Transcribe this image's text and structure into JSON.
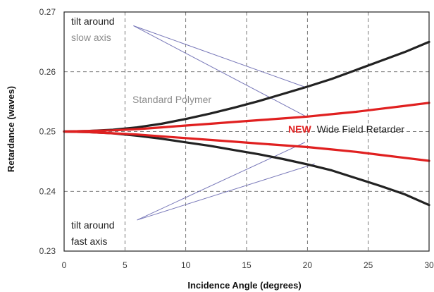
{
  "chart_data": {
    "type": "line",
    "xlabel": "Incidence Angle (degrees)",
    "ylabel": "Retardance (waves)",
    "xlim": [
      0,
      30
    ],
    "ylim": [
      0.23,
      0.27
    ],
    "x_ticks": [
      "0",
      "5",
      "10",
      "15",
      "20",
      "25",
      "30"
    ],
    "y_ticks": [
      "0.23",
      "0.24",
      "0.25",
      "0.26",
      "0.27"
    ],
    "grid": "dashed",
    "series": [
      {
        "group": "Standard Polymer",
        "color": "#222222",
        "x": [
          0,
          2,
          4,
          6,
          8,
          10,
          12,
          14,
          16,
          18,
          20,
          22,
          24,
          26,
          28,
          30
        ],
        "y": [
          0.25,
          0.2501,
          0.2503,
          0.2507,
          0.2513,
          0.2521,
          0.253,
          0.254,
          0.2551,
          0.2563,
          0.2575,
          0.2588,
          0.2603,
          0.2618,
          0.2633,
          0.265
        ]
      },
      {
        "group": "Standard Polymer",
        "color": "#222222",
        "x": [
          0,
          2,
          4,
          6,
          8,
          10,
          12,
          14,
          16,
          18,
          20,
          22,
          24,
          26,
          28,
          30
        ],
        "y": [
          0.25,
          0.2499,
          0.2497,
          0.2493,
          0.2488,
          0.2482,
          0.2476,
          0.2469,
          0.2462,
          0.2454,
          0.2445,
          0.2435,
          0.2422,
          0.2409,
          0.2395,
          0.2377
        ]
      },
      {
        "group": "NEW Wide Field Retarder",
        "color": "#e02020",
        "x": [
          0,
          2,
          4,
          6,
          8,
          10,
          12,
          14,
          16,
          18,
          20,
          22,
          24,
          26,
          28,
          30
        ],
        "y": [
          0.25,
          0.2501,
          0.2502,
          0.2504,
          0.2507,
          0.251,
          0.2513,
          0.2516,
          0.2519,
          0.2522,
          0.2525,
          0.2529,
          0.2533,
          0.2538,
          0.2543,
          0.2548
        ]
      },
      {
        "group": "NEW Wide Field Retarder",
        "color": "#e02020",
        "x": [
          0,
          2,
          4,
          6,
          8,
          10,
          12,
          14,
          16,
          18,
          20,
          22,
          24,
          26,
          28,
          30
        ],
        "y": [
          0.25,
          0.2499,
          0.2497,
          0.2495,
          0.2492,
          0.2489,
          0.2486,
          0.2483,
          0.248,
          0.2477,
          0.2474,
          0.247,
          0.2466,
          0.2461,
          0.2456,
          0.2451
        ]
      }
    ],
    "annotations": {
      "slow_axis_line1": "tilt around",
      "slow_axis_line2": "slow axis",
      "fast_axis_line1": "tilt around",
      "fast_axis_line2": "fast axis",
      "standard_polymer": "Standard Polymer",
      "new_word": "NEW",
      "wide_field": "Wide Field Retarder"
    },
    "pointer_lines": [
      {
        "from": [
          5.7,
          0.2677
        ],
        "to": [
          20.0,
          0.2573
        ]
      },
      {
        "from": [
          5.7,
          0.2677
        ],
        "to": [
          20.0,
          0.2524
        ]
      },
      {
        "from": [
          6.0,
          0.2352
        ],
        "to": [
          20.6,
          0.2446
        ]
      },
      {
        "from": [
          6.0,
          0.2352
        ],
        "to": [
          19.8,
          0.2482
        ]
      }
    ],
    "pointer_color": "#7777b8"
  }
}
